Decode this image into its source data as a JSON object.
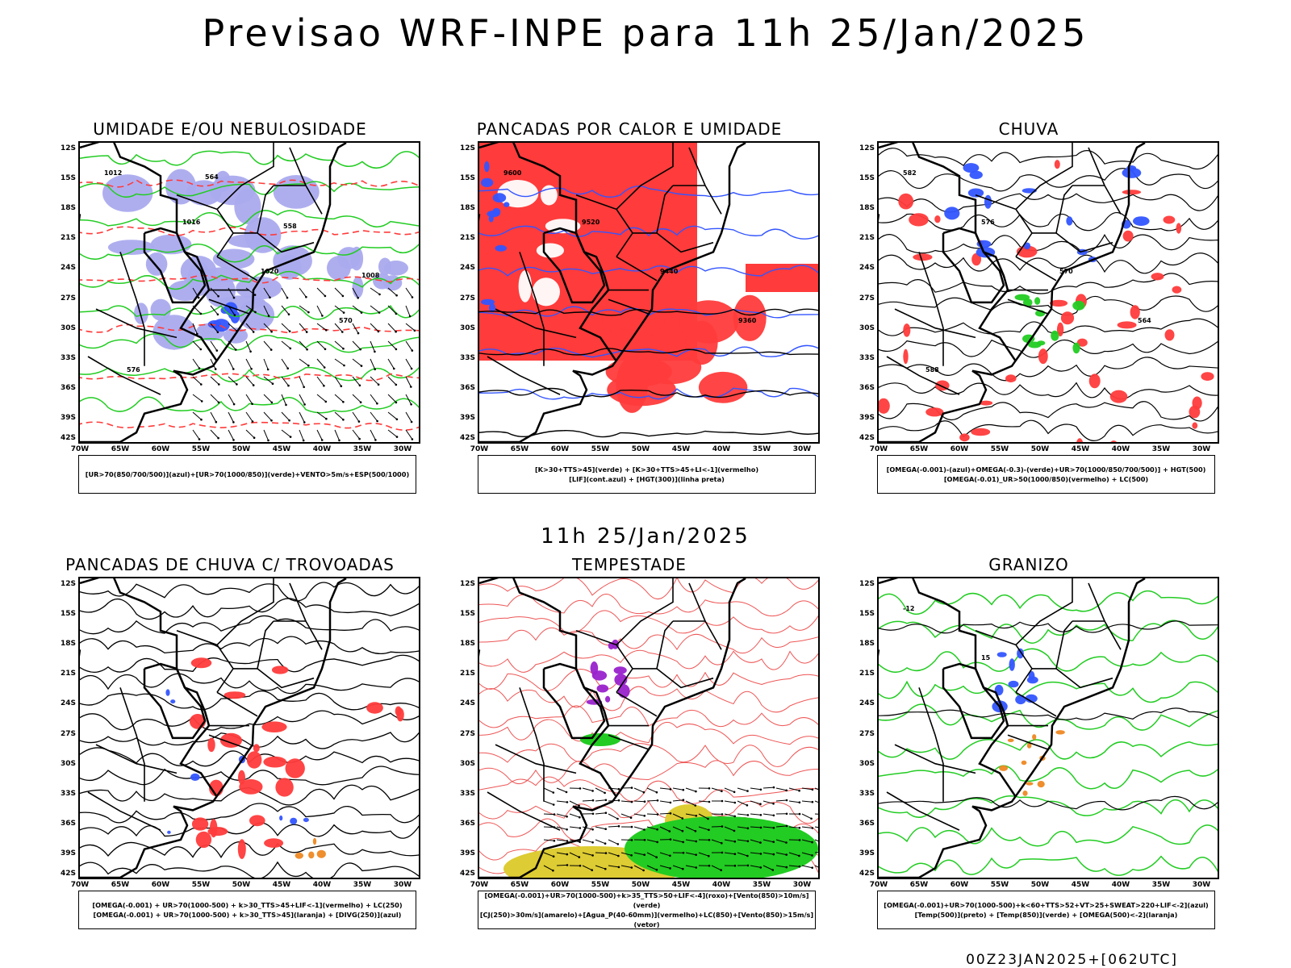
{
  "title": "Previsao WRF-INPE  para 11h 25/Jan/2025",
  "mid_title": "11h 25/Jan/2025",
  "footer": "00Z23JAN2025+[062UTC]",
  "lat_labels": [
    "12S",
    "15S",
    "18S",
    "21S",
    "24S",
    "27S",
    "30S",
    "33S",
    "36S",
    "39S",
    "42S"
  ],
  "lon_labels": [
    "70W",
    "65W",
    "60W",
    "55W",
    "50W",
    "45W",
    "40W",
    "35W",
    "30W"
  ],
  "colors": {
    "red": "#ff3b3b",
    "green": "#22cc22",
    "blue": "#3355ff",
    "lavender": "#aaaaee",
    "purple": "#9922cc",
    "yellow": "#ddcc33",
    "orange": "#ee8822"
  },
  "panels": [
    {
      "title": "UMIDADE E/OU NEBULOSIDADE",
      "legend": [
        "[UR>70(850/700/500)](azul)+[UR>70(1000/850)](verde)+VENTO>5m/s+ESP(500/1000)"
      ]
    },
    {
      "title": "PANCADAS POR CALOR E UMIDADE",
      "legend": [
        "[K>30+TTS>45](verde) + [K>30+TTS>45+LI<-1](vermelho)",
        "[LIF](cont.azul) + [HGT(300)](linha preta)"
      ]
    },
    {
      "title": "CHUVA",
      "legend": [
        "[OMEGA(-0.001)-(azul)+OMEGA(-0.3)-(verde)+UR>70(1000/850/700/500)] + HGT(500)",
        "[OMEGA(-0.01)_UR>50(1000/850)(vermelho) + LC(500)"
      ]
    },
    {
      "title": "PANCADAS DE CHUVA C/ TROVOADAS",
      "legend": [
        "[OMEGA(-0.001) + UR>70(1000-500) + k>30_TTS>45+LIF<-1](vermelho) + LC(250)",
        "[OMEGA(-0.001) + UR>70(1000-500) + k>30_TTS>45](laranja) + [DIVG(250)](azul)"
      ]
    },
    {
      "title": "TEMPESTADE",
      "legend": [
        "[OMEGA(-0.001)+UR>70(1000-500)+k>35_TTS>50+LIF<-4](roxo)+[Vento(850)>10m/s](verde)",
        "[CJ(250)>30m/s](amarelo)+[Agua_P(40-60mm)](vermelho)+LC(850)+[Vento(850)>15m/s](vetor)"
      ]
    },
    {
      "title": "GRANIZO",
      "legend": [
        "[OMEGA(-0.001)+UR>70(1000-500)+k<60+TTS>52+VT>25+SWEAT>220+LIF<-2](azul)",
        "[Temp(500)](preto) + [Temp(850)](verde) + [OMEGA(500)<-2](laranja)"
      ]
    }
  ],
  "contour_labels": {
    "p1": [
      "1012",
      "1016",
      "1020",
      "570",
      "576",
      "564",
      "558",
      "1008"
    ],
    "p2": [
      "9600",
      "9520",
      "9440",
      "9360"
    ],
    "p3": [
      "582",
      "576",
      "570",
      "564",
      "588"
    ],
    "p6": [
      "-12",
      "15"
    ]
  }
}
